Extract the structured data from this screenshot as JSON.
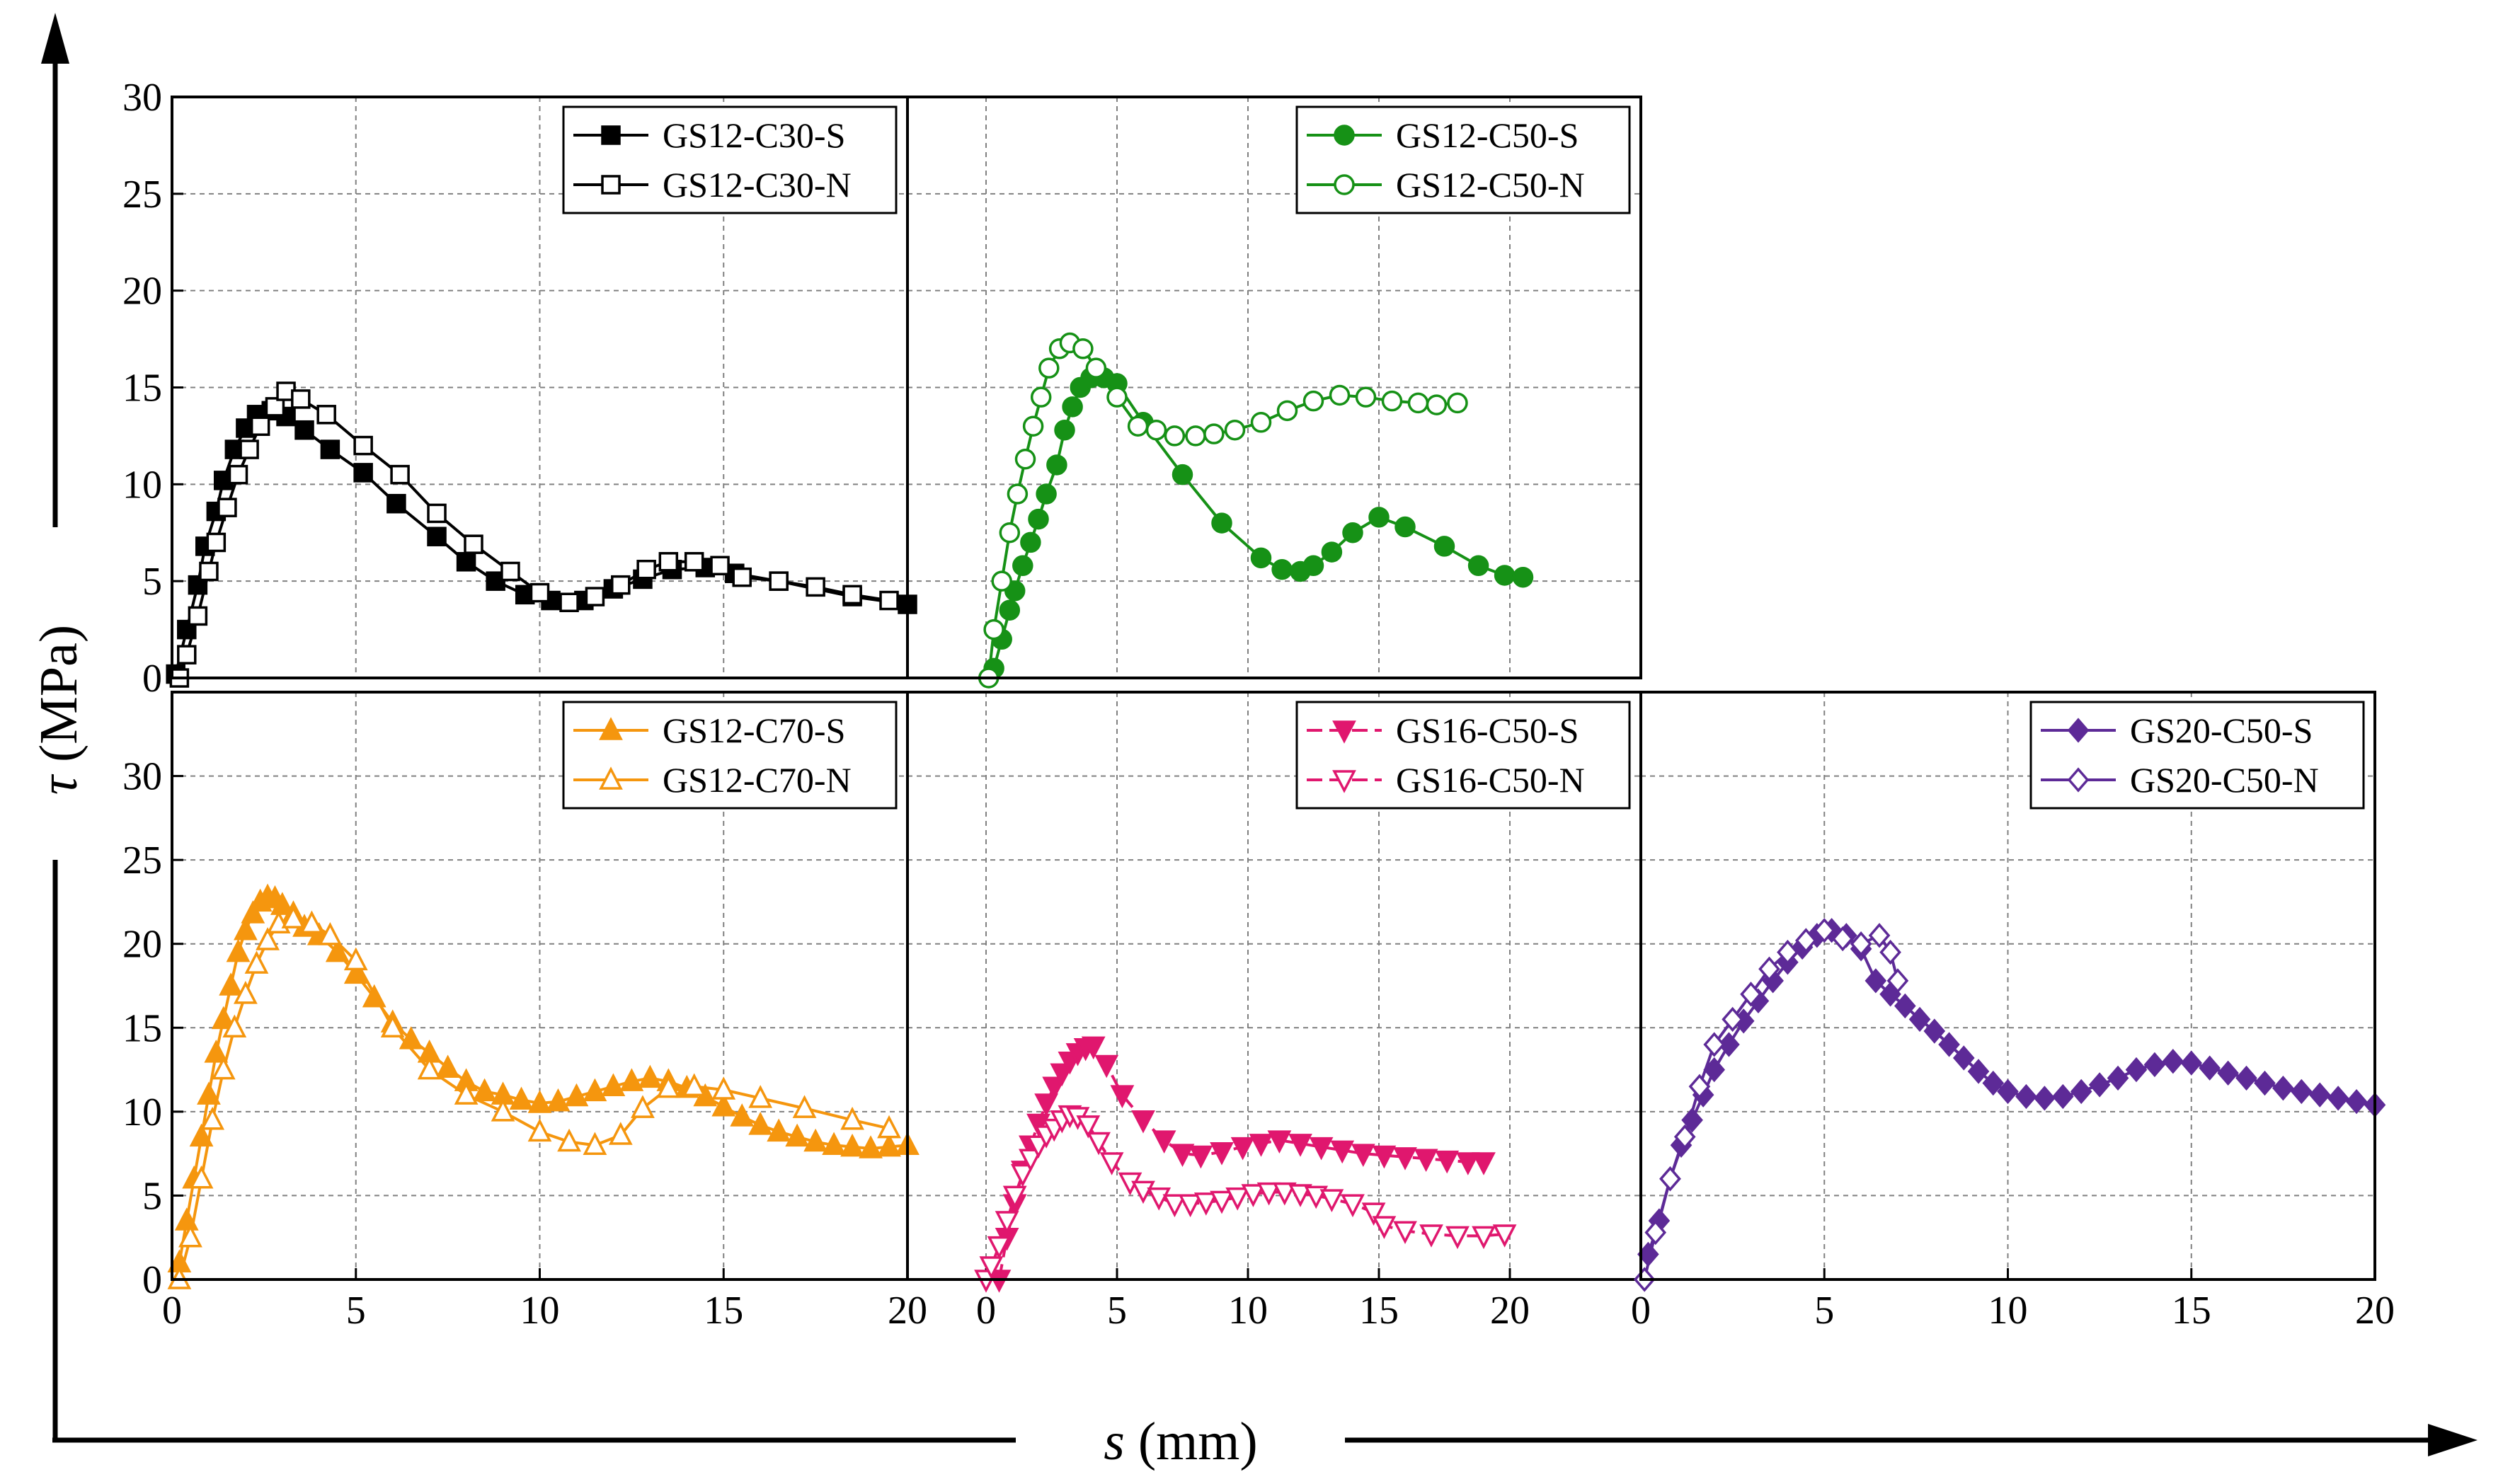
{
  "figure": {
    "xlabel_symbol": "s",
    "xlabel_unit": "(mm)",
    "ylabel_symbol": "τ",
    "ylabel_unit": "(MPa)"
  },
  "chart_data": [
    {
      "type": "line",
      "panel": "top-left",
      "xlim": [
        0,
        20
      ],
      "ylim": [
        0,
        30
      ],
      "xticks": [],
      "yticks": [
        "0",
        "5",
        "10",
        "15",
        "20",
        "25",
        "30"
      ],
      "grid": true,
      "legend_position": "top-right",
      "series": [
        {
          "name": "GS12-C30-S",
          "color": "#000000",
          "marker": "square",
          "filled": true,
          "dashed": false,
          "x": [
            0.1,
            0.4,
            0.7,
            0.9,
            1.2,
            1.4,
            1.7,
            2.0,
            2.3,
            2.7,
            3.1,
            3.6,
            4.3,
            5.2,
            6.1,
            7.2,
            8.0,
            8.8,
            9.6,
            10.3,
            11.2,
            12.0,
            12.8,
            13.6,
            14.5,
            15.3,
            16.5,
            18.5,
            20.0
          ],
          "y": [
            0.2,
            2.5,
            4.8,
            6.8,
            8.6,
            10.2,
            11.8,
            12.9,
            13.6,
            13.8,
            13.5,
            12.8,
            11.8,
            10.6,
            9.0,
            7.3,
            6.0,
            5.0,
            4.3,
            4.0,
            4.0,
            4.6,
            5.1,
            5.6,
            5.7,
            5.4,
            5.0,
            4.2,
            3.8
          ]
        },
        {
          "name": "GS12-C30-N",
          "color": "#000000",
          "marker": "square",
          "filled": false,
          "dashed": false,
          "x": [
            0.2,
            0.4,
            0.7,
            1.0,
            1.2,
            1.5,
            1.8,
            2.1,
            2.4,
            2.8,
            3.1,
            3.5,
            4.2,
            5.2,
            6.2,
            7.2,
            8.2,
            9.2,
            10.0,
            10.8,
            11.5,
            12.2,
            12.9,
            13.5,
            14.2,
            14.9,
            15.5,
            16.5,
            17.5,
            18.5,
            19.5
          ],
          "y": [
            0.0,
            1.2,
            3.2,
            5.5,
            7.0,
            8.8,
            10.5,
            11.8,
            13.0,
            14.0,
            14.8,
            14.4,
            13.6,
            12.0,
            10.5,
            8.5,
            6.9,
            5.5,
            4.4,
            3.9,
            4.2,
            4.8,
            5.6,
            6.0,
            6.0,
            5.8,
            5.2,
            5.0,
            4.7,
            4.3,
            4.0
          ]
        }
      ]
    },
    {
      "type": "line",
      "panel": "top-middle",
      "xlim": [
        -3,
        25
      ],
      "ylim": [
        0,
        30
      ],
      "xticks": [],
      "yticks": [],
      "grid": true,
      "legend_position": "top-right",
      "series": [
        {
          "name": "GS12-C50-S",
          "color": "#169116",
          "marker": "circle",
          "filled": true,
          "dashed": false,
          "x": [
            0.3,
            0.6,
            0.9,
            1.1,
            1.4,
            1.7,
            2.0,
            2.3,
            2.7,
            3.0,
            3.3,
            3.6,
            4.0,
            4.5,
            5.0,
            6.0,
            7.5,
            9.0,
            10.5,
            11.3,
            12.0,
            12.5,
            13.2,
            14.0,
            15.0,
            16.0,
            17.5,
            18.8,
            19.8,
            20.5
          ],
          "y": [
            0.5,
            2.0,
            3.5,
            4.5,
            5.8,
            7.0,
            8.2,
            9.5,
            11.0,
            12.8,
            14.0,
            15.0,
            15.5,
            15.5,
            15.2,
            13.2,
            10.5,
            8.0,
            6.2,
            5.6,
            5.5,
            5.8,
            6.5,
            7.5,
            8.3,
            7.8,
            6.8,
            5.8,
            5.3,
            5.2
          ]
        },
        {
          "name": "GS12-C50-N",
          "color": "#169116",
          "marker": "circle",
          "filled": false,
          "dashed": false,
          "x": [
            0.1,
            0.3,
            0.6,
            0.9,
            1.2,
            1.5,
            1.8,
            2.1,
            2.4,
            2.8,
            3.2,
            3.7,
            4.2,
            5.0,
            5.8,
            6.5,
            7.2,
            8.0,
            8.7,
            9.5,
            10.5,
            11.5,
            12.5,
            13.5,
            14.5,
            15.5,
            16.5,
            17.2,
            18.0
          ],
          "y": [
            0.0,
            2.5,
            5.0,
            7.5,
            9.5,
            11.3,
            13.0,
            14.5,
            16.0,
            17.0,
            17.3,
            17.0,
            16.0,
            14.5,
            13.0,
            12.8,
            12.5,
            12.5,
            12.6,
            12.8,
            13.2,
            13.8,
            14.3,
            14.6,
            14.5,
            14.3,
            14.2,
            14.1,
            14.2
          ]
        }
      ]
    },
    {
      "type": "line",
      "panel": "bottom-left",
      "xlim": [
        0,
        20
      ],
      "ylim": [
        0,
        35
      ],
      "xticks": [
        "0",
        "5",
        "10",
        "15",
        "20"
      ],
      "yticks": [
        "0",
        "5",
        "10",
        "15",
        "20",
        "25",
        "30"
      ],
      "grid": true,
      "legend_position": "top-right",
      "series": [
        {
          "name": "GS12-C70-S",
          "color": "#f5960e",
          "marker": "triangle-up",
          "filled": true,
          "dashed": false,
          "x": [
            0.2,
            0.4,
            0.6,
            0.8,
            1.0,
            1.2,
            1.4,
            1.6,
            1.8,
            2.0,
            2.2,
            2.4,
            2.6,
            2.8,
            3.0,
            3.3,
            3.6,
            4.0,
            4.5,
            5.0,
            5.5,
            6.0,
            6.5,
            7.0,
            7.5,
            8.0,
            8.5,
            9.0,
            9.5,
            10.0,
            10.5,
            11.0,
            11.5,
            12.0,
            12.5,
            13.0,
            13.5,
            14.0,
            14.5,
            15.0,
            15.5,
            16.0,
            16.5,
            17.0,
            17.5,
            18.0,
            18.5,
            19.0,
            19.5,
            20.0
          ],
          "y": [
            1.0,
            3.5,
            6.0,
            8.5,
            11.0,
            13.5,
            15.5,
            17.5,
            19.5,
            20.8,
            21.8,
            22.5,
            22.8,
            22.7,
            22.3,
            21.8,
            21.0,
            20.5,
            19.5,
            18.2,
            16.8,
            15.3,
            14.3,
            13.5,
            12.6,
            11.8,
            11.2,
            11.0,
            10.7,
            10.5,
            10.6,
            10.9,
            11.2,
            11.5,
            11.8,
            12.0,
            11.8,
            11.4,
            10.9,
            10.3,
            9.7,
            9.2,
            8.8,
            8.5,
            8.2,
            8.0,
            7.9,
            7.8,
            7.9,
            8.0
          ]
        },
        {
          "name": "GS12-C70-N",
          "color": "#f5960e",
          "marker": "triangle-up",
          "filled": false,
          "dashed": false,
          "x": [
            0.2,
            0.5,
            0.8,
            1.1,
            1.4,
            1.7,
            2.0,
            2.3,
            2.6,
            2.9,
            3.3,
            3.8,
            4.3,
            5.0,
            6.0,
            7.0,
            8.0,
            9.0,
            10.0,
            10.8,
            11.5,
            12.2,
            12.8,
            13.5,
            14.2,
            15.0,
            16.0,
            17.2,
            18.5,
            19.5
          ],
          "y": [
            0.0,
            2.5,
            6.0,
            9.5,
            12.5,
            15.0,
            17.0,
            18.8,
            20.2,
            21.2,
            21.5,
            21.2,
            20.5,
            19.0,
            15.0,
            12.5,
            11.0,
            10.0,
            8.8,
            8.2,
            8.0,
            8.6,
            10.2,
            11.4,
            11.5,
            11.3,
            10.8,
            10.2,
            9.5,
            9.0
          ]
        }
      ]
    },
    {
      "type": "line",
      "panel": "bottom-middle",
      "xlim": [
        -3,
        25
      ],
      "ylim": [
        0,
        35
      ],
      "xticks": [
        "0",
        "5",
        "10",
        "15",
        "20"
      ],
      "yticks": [],
      "grid": true,
      "legend_position": "top-right",
      "series": [
        {
          "name": "GS16-C50-S",
          "color": "#e0176e",
          "marker": "triangle-down",
          "filled": true,
          "dashed": true,
          "x": [
            0.5,
            0.8,
            1.1,
            1.4,
            1.7,
            2.0,
            2.3,
            2.6,
            2.9,
            3.2,
            3.5,
            3.8,
            4.1,
            4.6,
            5.2,
            6.0,
            6.8,
            7.5,
            8.2,
            9.0,
            9.8,
            10.5,
            11.2,
            12.0,
            12.8,
            13.6,
            14.4,
            15.2,
            16.0,
            16.8,
            17.6,
            18.4,
            19.0
          ],
          "y": [
            0.0,
            2.5,
            4.5,
            6.5,
            8.0,
            9.3,
            10.5,
            11.5,
            12.3,
            13.0,
            13.5,
            13.8,
            13.9,
            12.8,
            11.0,
            9.5,
            8.3,
            7.5,
            7.4,
            7.6,
            7.9,
            8.1,
            8.3,
            8.1,
            7.9,
            7.7,
            7.5,
            7.4,
            7.3,
            7.2,
            7.1,
            7.0,
            7.0
          ]
        },
        {
          "name": "GS16-C50-N",
          "color": "#e0176e",
          "marker": "triangle-down",
          "filled": false,
          "dashed": true,
          "x": [
            0.0,
            0.2,
            0.5,
            0.8,
            1.1,
            1.4,
            1.7,
            2.0,
            2.3,
            2.6,
            2.9,
            3.2,
            3.5,
            3.9,
            4.3,
            4.8,
            5.5,
            6.0,
            6.6,
            7.2,
            7.8,
            8.4,
            9.0,
            9.6,
            10.2,
            10.8,
            11.4,
            12.0,
            12.6,
            13.2,
            14.0,
            14.8,
            15.2,
            16.0,
            17.0,
            18.0,
            19.0,
            19.8
          ],
          "y": [
            0.0,
            0.8,
            2.0,
            3.5,
            5.0,
            6.3,
            7.2,
            8.0,
            8.6,
            9.0,
            9.5,
            9.8,
            9.7,
            9.2,
            8.2,
            7.0,
            5.8,
            5.3,
            4.9,
            4.5,
            4.5,
            4.6,
            4.7,
            4.9,
            5.1,
            5.2,
            5.2,
            5.1,
            5.0,
            4.8,
            4.5,
            4.0,
            3.2,
            2.9,
            2.7,
            2.6,
            2.6,
            2.7
          ]
        }
      ]
    },
    {
      "type": "line",
      "panel": "bottom-right",
      "xlim": [
        0,
        20
      ],
      "ylim": [
        0,
        35
      ],
      "xticks": [
        "0",
        "5",
        "10",
        "15",
        "20"
      ],
      "yticks": [],
      "grid": true,
      "legend_position": "top-right",
      "series": [
        {
          "name": "GS20-C50-S",
          "color": "#5d2a97",
          "marker": "diamond",
          "filled": true,
          "dashed": false,
          "x": [
            0.2,
            0.5,
            0.8,
            1.1,
            1.4,
            1.7,
            2.0,
            2.4,
            2.8,
            3.2,
            3.6,
            4.0,
            4.4,
            4.8,
            5.2,
            5.6,
            6.0,
            6.4,
            6.8,
            7.2,
            7.6,
            8.0,
            8.4,
            8.8,
            9.2,
            9.6,
            10.0,
            10.5,
            11.0,
            11.5,
            12.0,
            12.5,
            13.0,
            13.5,
            14.0,
            14.5,
            15.0,
            15.5,
            16.0,
            16.5,
            17.0,
            17.5,
            18.0,
            18.5,
            19.0,
            19.5,
            20.0
          ],
          "y": [
            1.5,
            3.5,
            6.0,
            8.0,
            9.5,
            11.0,
            12.5,
            14.0,
            15.4,
            16.6,
            17.8,
            18.9,
            19.8,
            20.5,
            20.8,
            20.5,
            19.7,
            17.8,
            17.0,
            16.3,
            15.5,
            14.8,
            14.0,
            13.2,
            12.4,
            11.7,
            11.2,
            10.9,
            10.8,
            10.9,
            11.2,
            11.6,
            12.0,
            12.5,
            12.8,
            13.0,
            12.9,
            12.6,
            12.3,
            12.0,
            11.7,
            11.4,
            11.2,
            11.0,
            10.8,
            10.6,
            10.4
          ]
        },
        {
          "name": "GS20-C50-N",
          "color": "#5d2a97",
          "marker": "diamond",
          "filled": false,
          "dashed": false,
          "x": [
            0.1,
            0.4,
            0.8,
            1.2,
            1.6,
            2.0,
            2.5,
            3.0,
            3.5,
            4.0,
            4.5,
            5.0,
            5.5,
            6.0,
            6.5,
            6.8,
            7.0
          ],
          "y": [
            0.0,
            2.8,
            6.0,
            8.5,
            11.5,
            14.0,
            15.5,
            17.0,
            18.5,
            19.5,
            20.2,
            20.8,
            20.3,
            20.0,
            20.5,
            19.5,
            17.8
          ]
        }
      ]
    }
  ]
}
